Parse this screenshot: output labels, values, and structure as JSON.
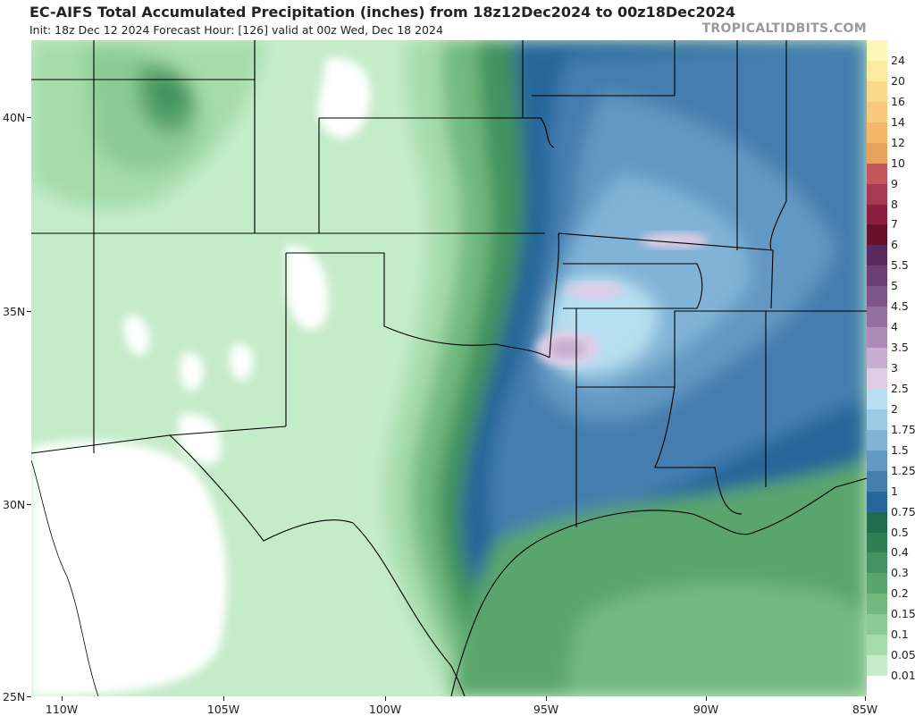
{
  "header": {
    "title": "EC-AIFS Total Accumulated Precipitation (inches) from 18z12Dec2024 to 00z18Dec2024",
    "subtitle": "Init: 18z Dec 12 2024   Forecast Hour: [126]   valid at 00z Wed, Dec 18 2024",
    "credit": "TROPICALTIDBITS.COM"
  },
  "axes": {
    "lat_labels": [
      "40N",
      "35N",
      "30N",
      "25N"
    ],
    "lon_labels": [
      "110W",
      "105W",
      "100W",
      "95W",
      "90W",
      "85W"
    ]
  },
  "colorbar": {
    "levels": [
      {
        "label": "24",
        "color": "#fbf8b6"
      },
      {
        "label": "20",
        "color": "#fdeca0"
      },
      {
        "label": "16",
        "color": "#fbd98c"
      },
      {
        "label": "14",
        "color": "#f8c97c"
      },
      {
        "label": "12",
        "color": "#f5b76c"
      },
      {
        "label": "10",
        "color": "#e9a25c"
      },
      {
        "label": "9",
        "color": "#c2565a"
      },
      {
        "label": "8",
        "color": "#a63a52"
      },
      {
        "label": "7",
        "color": "#8a1f3f"
      },
      {
        "label": "6",
        "color": "#6a0f2c"
      },
      {
        "label": "5.5",
        "color": "#5a2a5e"
      },
      {
        "label": "5",
        "color": "#6b3f74"
      },
      {
        "label": "4.5",
        "color": "#80568a"
      },
      {
        "label": "4",
        "color": "#966fa1"
      },
      {
        "label": "3.5",
        "color": "#ad8bb8"
      },
      {
        "label": "3",
        "color": "#c7aed0"
      },
      {
        "label": "2.5",
        "color": "#dfcde6"
      },
      {
        "label": "2",
        "color": "#b6dff2"
      },
      {
        "label": "1.75",
        "color": "#9ccbe6"
      },
      {
        "label": "1.5",
        "color": "#80b3d6"
      },
      {
        "label": "1.25",
        "color": "#6398c2"
      },
      {
        "label": "1",
        "color": "#447eae"
      },
      {
        "label": "0.75",
        "color": "#26669a"
      },
      {
        "label": "0.5",
        "color": "#1f6d4b"
      },
      {
        "label": "0.4",
        "color": "#2f7f55"
      },
      {
        "label": "0.3",
        "color": "#43925f"
      },
      {
        "label": "0.2",
        "color": "#5aa56d"
      },
      {
        "label": "0.15",
        "color": "#72b97f"
      },
      {
        "label": "0.1",
        "color": "#8ccb94"
      },
      {
        "label": "0.05",
        "color": "#a6dcab"
      },
      {
        "label": "0.01",
        "color": "#c4ecc9"
      },
      {
        "label": "",
        "color": "#ffffff"
      }
    ]
  },
  "colors": {
    "land_light": "#c4ecc9",
    "ocean": "#5aa56d",
    "state_lines": "#000000",
    "county_lines": "#808080"
  }
}
